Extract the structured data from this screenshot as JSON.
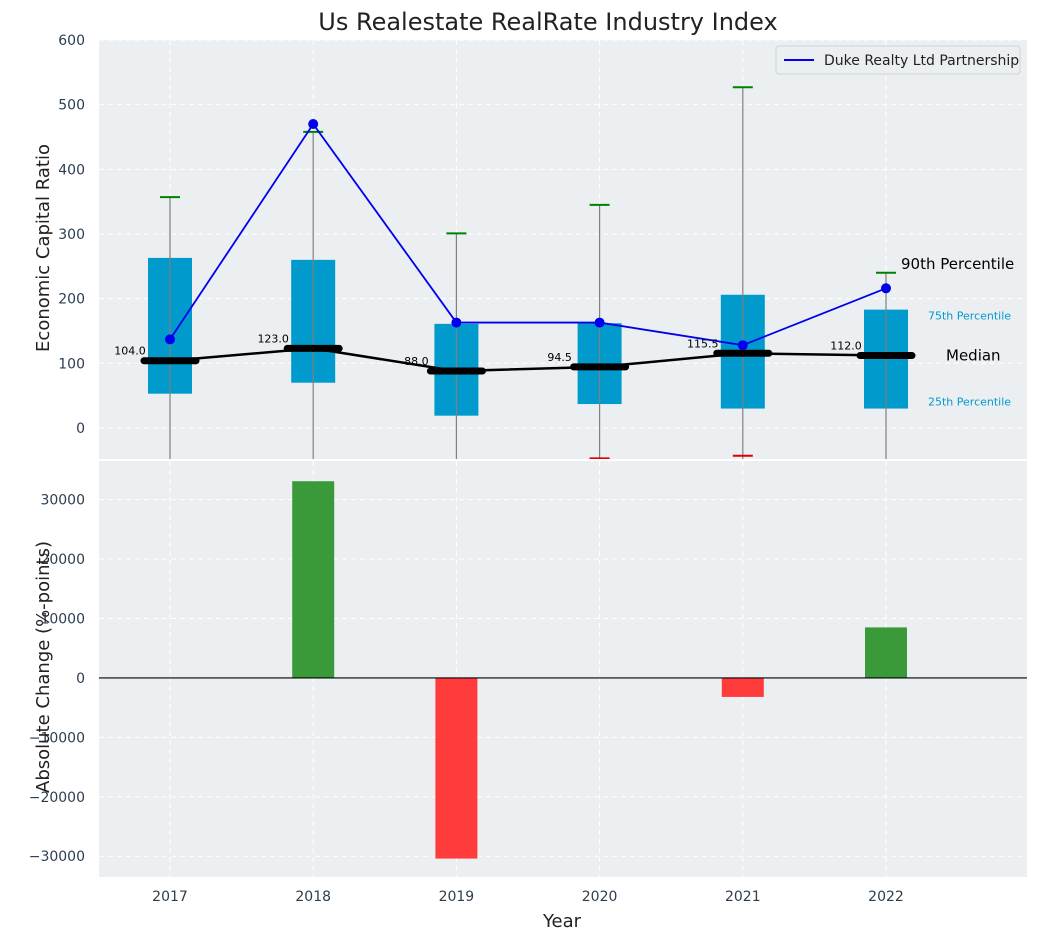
{
  "chart_data": {
    "title": "Us Realestate RealRate Industry Index",
    "xlabel": "Year",
    "categories": [
      "2017",
      "2018",
      "2019",
      "2020",
      "2021",
      "2022"
    ],
    "top_panel": {
      "type": "box",
      "ylabel": "Economic Capital Ratio",
      "ylim": [
        -48,
        600
      ],
      "yticks": [
        0,
        100,
        200,
        300,
        400,
        500,
        600
      ],
      "grid": true,
      "boxes": [
        {
          "year": "2017",
          "q1": 53,
          "median": 104.0,
          "q3": 263,
          "whisker_high": 357,
          "whisker_low": null,
          "median_label": "104.0"
        },
        {
          "year": "2018",
          "q1": 70,
          "median": 123.0,
          "q3": 260,
          "whisker_high": 458,
          "whisker_low": null,
          "median_label": "123.0"
        },
        {
          "year": "2019",
          "q1": 19,
          "median": 88.0,
          "q3": 161,
          "whisker_high": 301,
          "whisker_low": null,
          "median_label": "88.0"
        },
        {
          "year": "2020",
          "q1": 37,
          "median": 94.5,
          "q3": 162,
          "whisker_high": 345,
          "whisker_low": -47,
          "median_label": "94.5"
        },
        {
          "year": "2021",
          "q1": 30,
          "median": 115.5,
          "q3": 206,
          "whisker_high": 527,
          "whisker_low": -43,
          "median_label": "115.5"
        },
        {
          "year": "2022",
          "q1": 30,
          "median": 112.0,
          "q3": 183,
          "whisker_high": 240,
          "whisker_low": null,
          "median_label": "112.0"
        }
      ],
      "series": [
        {
          "name": "Duke Realty Ltd Partnership",
          "color": "#0000ee",
          "values": [
            137,
            470,
            163,
            163,
            128,
            216
          ]
        }
      ],
      "legend_position": "top-right",
      "annotations": {
        "p90": "90th Percentile",
        "p75": "75th Percentile",
        "median": "Median",
        "p25": "25th Percentile"
      }
    },
    "bottom_panel": {
      "type": "bar",
      "ylabel": "Absolute Change (%-points)",
      "ylim": [
        -33500,
        36500
      ],
      "yticks": [
        -30000,
        -20000,
        -10000,
        0,
        10000,
        20000,
        30000
      ],
      "grid": true,
      "values": [
        0,
        33100,
        -30400,
        0,
        -3200,
        8500
      ]
    },
    "colors": {
      "box": "#009acd",
      "positive": "#3a9a3a",
      "negative": "#ff3b3b",
      "whisker_cap_high": "#008000",
      "whisker_cap_low": "#dd0000",
      "median_line": "#000000",
      "plot_bg": "#ebeff1",
      "tick_text": "#2d3e50"
    }
  }
}
